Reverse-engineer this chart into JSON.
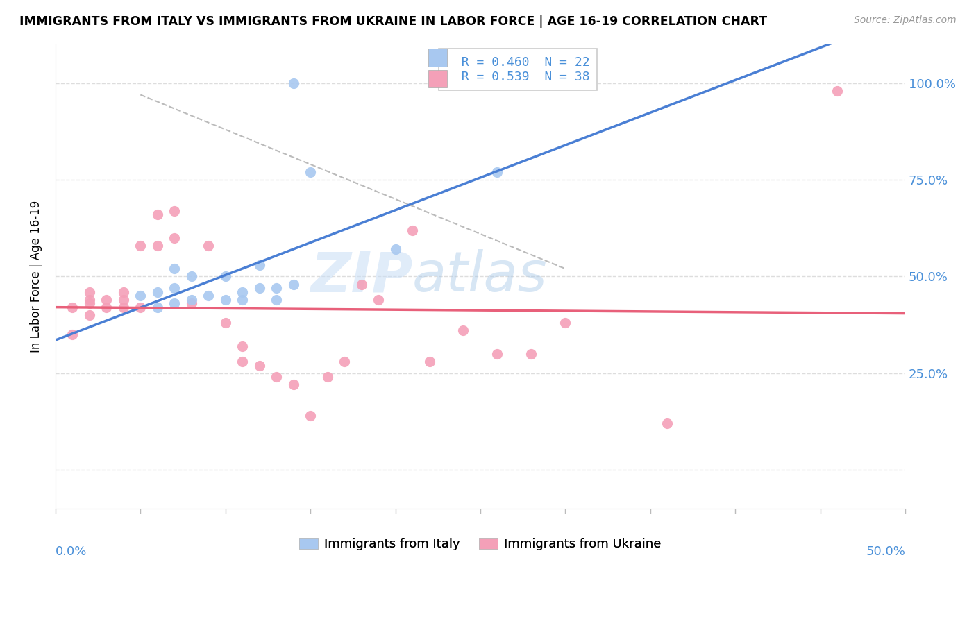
{
  "title": "IMMIGRANTS FROM ITALY VS IMMIGRANTS FROM UKRAINE IN LABOR FORCE | AGE 16-19 CORRELATION CHART",
  "source": "Source: ZipAtlas.com",
  "legend_italy": "R = 0.460  N = 22",
  "legend_ukraine": "R = 0.539  N = 38",
  "legend_label_italy": "Immigrants from Italy",
  "legend_label_ukraine": "Immigrants from Ukraine",
  "xmin": 0.0,
  "xmax": 0.5,
  "ymin": -0.1,
  "ymax": 1.1,
  "yticks": [
    0.0,
    0.25,
    0.5,
    0.75,
    1.0
  ],
  "ytick_labels": [
    "",
    "25.0%",
    "50.0%",
    "75.0%",
    "100.0%"
  ],
  "color_italy": "#a8c8f0",
  "color_ukraine": "#f4a0b8",
  "color_italy_line": "#4a7fd4",
  "color_ukraine_line": "#e8607a",
  "color_dashed": "#bbbbbb",
  "italy_x": [
    0.14,
    0.05,
    0.06,
    0.06,
    0.07,
    0.07,
    0.07,
    0.08,
    0.08,
    0.09,
    0.1,
    0.1,
    0.11,
    0.11,
    0.12,
    0.12,
    0.13,
    0.13,
    0.14,
    0.15,
    0.2,
    0.26
  ],
  "italy_y": [
    1.0,
    0.45,
    0.42,
    0.46,
    0.43,
    0.47,
    0.52,
    0.44,
    0.5,
    0.45,
    0.44,
    0.5,
    0.44,
    0.46,
    0.47,
    0.53,
    0.44,
    0.47,
    0.48,
    0.77,
    0.57,
    0.77
  ],
  "ukraine_x": [
    0.01,
    0.01,
    0.02,
    0.02,
    0.02,
    0.02,
    0.03,
    0.03,
    0.04,
    0.04,
    0.04,
    0.05,
    0.05,
    0.06,
    0.06,
    0.07,
    0.07,
    0.08,
    0.09,
    0.1,
    0.11,
    0.11,
    0.12,
    0.13,
    0.14,
    0.15,
    0.16,
    0.17,
    0.18,
    0.19,
    0.21,
    0.22,
    0.24,
    0.26,
    0.28,
    0.3,
    0.36,
    0.46
  ],
  "ukraine_y": [
    0.35,
    0.42,
    0.4,
    0.43,
    0.44,
    0.46,
    0.42,
    0.44,
    0.42,
    0.44,
    0.46,
    0.42,
    0.58,
    0.58,
    0.66,
    0.6,
    0.67,
    0.43,
    0.58,
    0.38,
    0.28,
    0.32,
    0.27,
    0.24,
    0.22,
    0.14,
    0.24,
    0.28,
    0.48,
    0.44,
    0.62,
    0.28,
    0.36,
    0.3,
    0.3,
    0.38,
    0.12,
    0.98
  ],
  "watermark_zip": "ZIP",
  "watermark_atlas": "atlas",
  "bg_color": "#ffffff",
  "grid_color": "#dddddd",
  "grid_style": "--"
}
